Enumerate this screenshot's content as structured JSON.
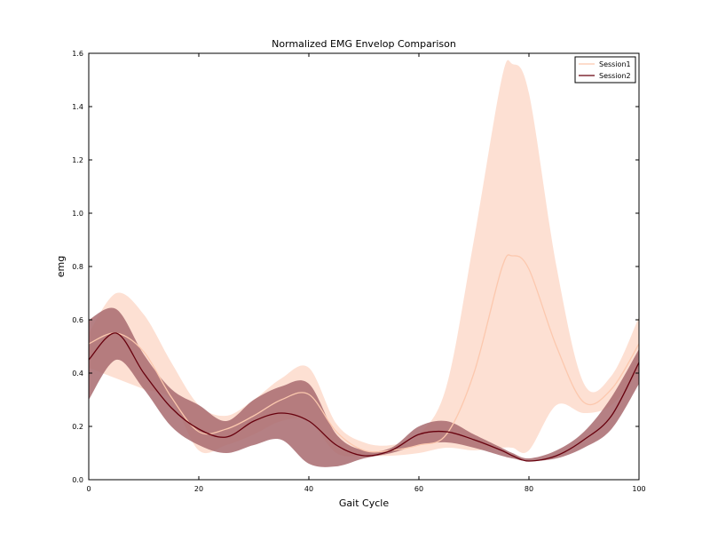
{
  "chart_data": {
    "type": "line",
    "title": "Normalized EMG Envelop Comparison",
    "xlabel": "Gait Cycle",
    "ylabel": "emg",
    "xlim": [
      0,
      100
    ],
    "ylim": [
      0,
      1.6
    ],
    "xticks": [
      0,
      20,
      40,
      60,
      80,
      100
    ],
    "xtick_labels": [
      "0",
      "20",
      "40",
      "60",
      "80",
      "100"
    ],
    "yticks": [
      0.0,
      0.2,
      0.4,
      0.6,
      0.8,
      1.0,
      1.2,
      1.4,
      1.6
    ],
    "ytick_labels": [
      "0.0",
      "0.2",
      "0.4",
      "0.6",
      "0.8",
      "1.0",
      "1.2",
      "1.4",
      "1.6"
    ],
    "grid": false,
    "legend_position": "top-right",
    "x": [
      0,
      5,
      10,
      15,
      20,
      25,
      30,
      35,
      40,
      45,
      50,
      55,
      60,
      65,
      70,
      75,
      77,
      80,
      85,
      90,
      95,
      100
    ],
    "series": [
      {
        "name": "Session1",
        "color": "#fcc8ae",
        "band_color": "#fcd5c4",
        "mean": [
          0.51,
          0.55,
          0.48,
          0.31,
          0.18,
          0.19,
          0.24,
          0.3,
          0.32,
          0.18,
          0.11,
          0.11,
          0.13,
          0.17,
          0.4,
          0.79,
          0.84,
          0.79,
          0.5,
          0.29,
          0.34,
          0.51
        ],
        "upper": [
          0.55,
          0.7,
          0.62,
          0.44,
          0.28,
          0.24,
          0.3,
          0.38,
          0.42,
          0.21,
          0.14,
          0.13,
          0.17,
          0.35,
          0.9,
          1.5,
          1.56,
          1.45,
          0.8,
          0.36,
          0.39,
          0.61
        ],
        "lower": [
          0.42,
          0.38,
          0.34,
          0.3,
          0.11,
          0.13,
          0.17,
          0.22,
          0.22,
          0.1,
          0.09,
          0.09,
          0.1,
          0.12,
          0.11,
          0.12,
          0.12,
          0.11,
          0.28,
          0.25,
          0.28,
          0.41
        ]
      },
      {
        "name": "Session2",
        "color": "#67000d",
        "band_color": "#a86a6e",
        "mean": [
          0.45,
          0.55,
          0.4,
          0.27,
          0.19,
          0.16,
          0.22,
          0.25,
          0.22,
          0.13,
          0.09,
          0.11,
          0.17,
          0.18,
          0.15,
          0.11,
          0.09,
          0.07,
          0.09,
          0.15,
          0.24,
          0.44
        ],
        "upper": [
          0.6,
          0.64,
          0.47,
          0.34,
          0.28,
          0.22,
          0.3,
          0.35,
          0.36,
          0.17,
          0.11,
          0.12,
          0.2,
          0.22,
          0.17,
          0.12,
          0.1,
          0.08,
          0.11,
          0.18,
          0.31,
          0.49
        ],
        "lower": [
          0.3,
          0.45,
          0.34,
          0.2,
          0.13,
          0.1,
          0.13,
          0.15,
          0.06,
          0.05,
          0.08,
          0.1,
          0.13,
          0.14,
          0.12,
          0.09,
          0.08,
          0.07,
          0.08,
          0.12,
          0.19,
          0.36
        ]
      }
    ]
  }
}
